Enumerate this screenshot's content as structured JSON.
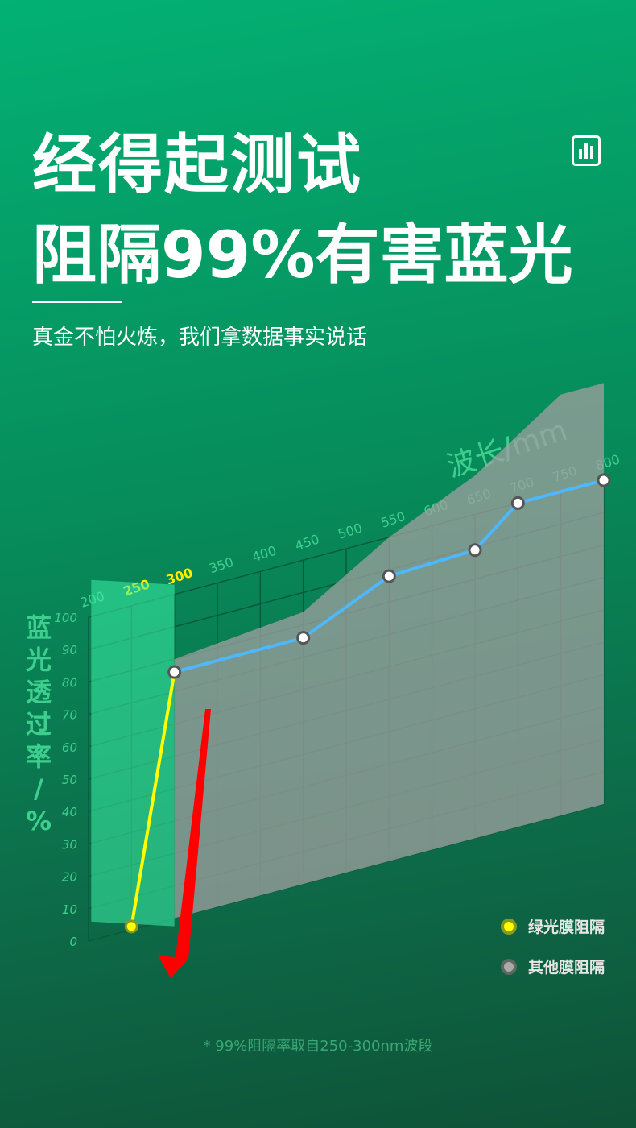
{
  "header": {
    "title_line1": "经得起测试",
    "title_line2": "阻隔99%有害蓝光",
    "subtitle": "真金不怕火炼，我们拿数据事实说话",
    "icon": "bar-chart-icon"
  },
  "footnote": "* 99%阻隔率取自250-300nm波段",
  "chart_data": {
    "type": "line",
    "xlabel": "波长/mm",
    "ylabel": "蓝光透过率/%",
    "x_ticks": [
      200,
      250,
      300,
      350,
      400,
      450,
      500,
      550,
      600,
      650,
      700,
      750,
      800
    ],
    "highlight_ticks": [
      250,
      300
    ],
    "y_ticks": [
      0,
      10,
      20,
      30,
      40,
      50,
      60,
      70,
      80,
      90,
      100
    ],
    "xlim": [
      200,
      800
    ],
    "ylim": [
      0,
      100
    ],
    "grid": true,
    "legend": "bottom-right",
    "series": [
      {
        "name": "绿光膜阻隔",
        "color": "#ffff00",
        "x": [
          250,
          300
        ],
        "values": [
          1,
          76
        ]
      },
      {
        "name": "其他膜阻隔",
        "color": "#4db8ff",
        "x": [
          300,
          450,
          550,
          650,
          700,
          800
        ],
        "values": [
          76,
          76,
          88,
          89,
          100,
          100
        ]
      }
    ],
    "colors": {
      "highlight": "#ffee00",
      "axis_text": "#3ecf8e",
      "area": "#a0a0a0",
      "box": "#3df0a8",
      "arrow": "#ff0000"
    }
  }
}
